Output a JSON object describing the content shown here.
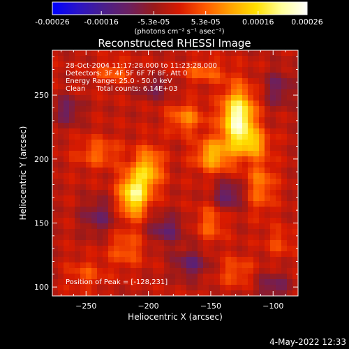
{
  "colorbar": {
    "tick_labels": [
      "-0.00026",
      "-0.00016",
      "-5.3e-05",
      "5.3e-05",
      "0.00016",
      "0.00026"
    ],
    "units_label": "(photons cm⁻² s⁻¹ asec⁻²)",
    "min": -0.00026,
    "max": 0.00026,
    "colormap": [
      "#0000ff",
      "#2a14c8",
      "#4a1f8c",
      "#6b2060",
      "#9a1a1a",
      "#d81a00",
      "#ff5a00",
      "#ffa300",
      "#ffe000",
      "#ffff9a",
      "#ffffff"
    ]
  },
  "chart_data": {
    "type": "heatmap",
    "title": "Reconstructed RHESSI Image",
    "xlabel": "Heliocentric X (arcsec)",
    "ylabel": "Heliocentric Y (arcsec)",
    "xlim": [
      -277,
      -80
    ],
    "ylim": [
      93,
      285
    ],
    "xticks": [
      -250,
      -200,
      -150,
      -100
    ],
    "yticks": [
      100,
      150,
      200,
      250
    ],
    "xtick_labels": [
      "−250",
      "−200",
      "−150",
      "−100"
    ],
    "ytick_labels": [
      "100",
      "150",
      "200",
      "250"
    ],
    "grid": false,
    "peak_position": [
      -128,
      231
    ],
    "peak_value": 0.00026,
    "sources": [
      {
        "x": -128,
        "y": 231,
        "amp": 1.0,
        "sx": 9,
        "sy": 16
      },
      {
        "x": -212,
        "y": 172,
        "amp": 0.82,
        "sx": 8,
        "sy": 12
      },
      {
        "x": -200,
        "y": 192,
        "amp": 0.55,
        "sx": 8,
        "sy": 12
      },
      {
        "x": -148,
        "y": 203,
        "amp": 0.55,
        "sx": 10,
        "sy": 9
      },
      {
        "x": -115,
        "y": 212,
        "amp": 0.45,
        "sx": 8,
        "sy": 7
      },
      {
        "x": -110,
        "y": 180,
        "amp": 0.35,
        "sx": 8,
        "sy": 14
      },
      {
        "x": -170,
        "y": 232,
        "amp": 0.38,
        "sx": 10,
        "sy": 8
      },
      {
        "x": -240,
        "y": 205,
        "amp": 0.3,
        "sx": 12,
        "sy": 8
      },
      {
        "x": -155,
        "y": 268,
        "amp": 0.3,
        "sx": 12,
        "sy": 6
      },
      {
        "x": -228,
        "y": 268,
        "amp": 0.28,
        "sx": 10,
        "sy": 6
      },
      {
        "x": -218,
        "y": 130,
        "amp": 0.28,
        "sx": 10,
        "sy": 10
      },
      {
        "x": -150,
        "y": 150,
        "amp": 0.3,
        "sx": 8,
        "sy": 10
      },
      {
        "x": -130,
        "y": 112,
        "amp": 0.25,
        "sx": 10,
        "sy": 8
      },
      {
        "x": -250,
        "y": 110,
        "amp": 0.22,
        "sx": 10,
        "sy": 8
      },
      {
        "x": -95,
        "y": 135,
        "amp": 0.2,
        "sx": 8,
        "sy": 8
      },
      {
        "x": -186,
        "y": 145,
        "amp": -0.35,
        "sx": 10,
        "sy": 8
      },
      {
        "x": -240,
        "y": 155,
        "amp": -0.3,
        "sx": 10,
        "sy": 10
      },
      {
        "x": -136,
        "y": 172,
        "amp": -0.4,
        "sx": 8,
        "sy": 8
      },
      {
        "x": -96,
        "y": 255,
        "amp": -0.3,
        "sx": 8,
        "sy": 10
      },
      {
        "x": -265,
        "y": 238,
        "amp": -0.32,
        "sx": 8,
        "sy": 8
      },
      {
        "x": -195,
        "y": 255,
        "amp": -0.25,
        "sx": 10,
        "sy": 6
      },
      {
        "x": -166,
        "y": 118,
        "amp": -0.35,
        "sx": 10,
        "sy": 8
      },
      {
        "x": -100,
        "y": 100,
        "amp": -0.3,
        "sx": 10,
        "sy": 8
      }
    ]
  },
  "info": {
    "line1": "28-Oct-2004 11:17:28.000 to 11:23:28.000",
    "line2": "Detectors: 3F 4F 5F 6F 7F 8F, Att 0",
    "line3": "Energy Range: 25.0 - 50.0 keV",
    "line4": "Clean     Total counts: 6.14E+03"
  },
  "peak_text": "Position of Peak = [-128,231]",
  "timestamp": "4-May-2022 12:33"
}
